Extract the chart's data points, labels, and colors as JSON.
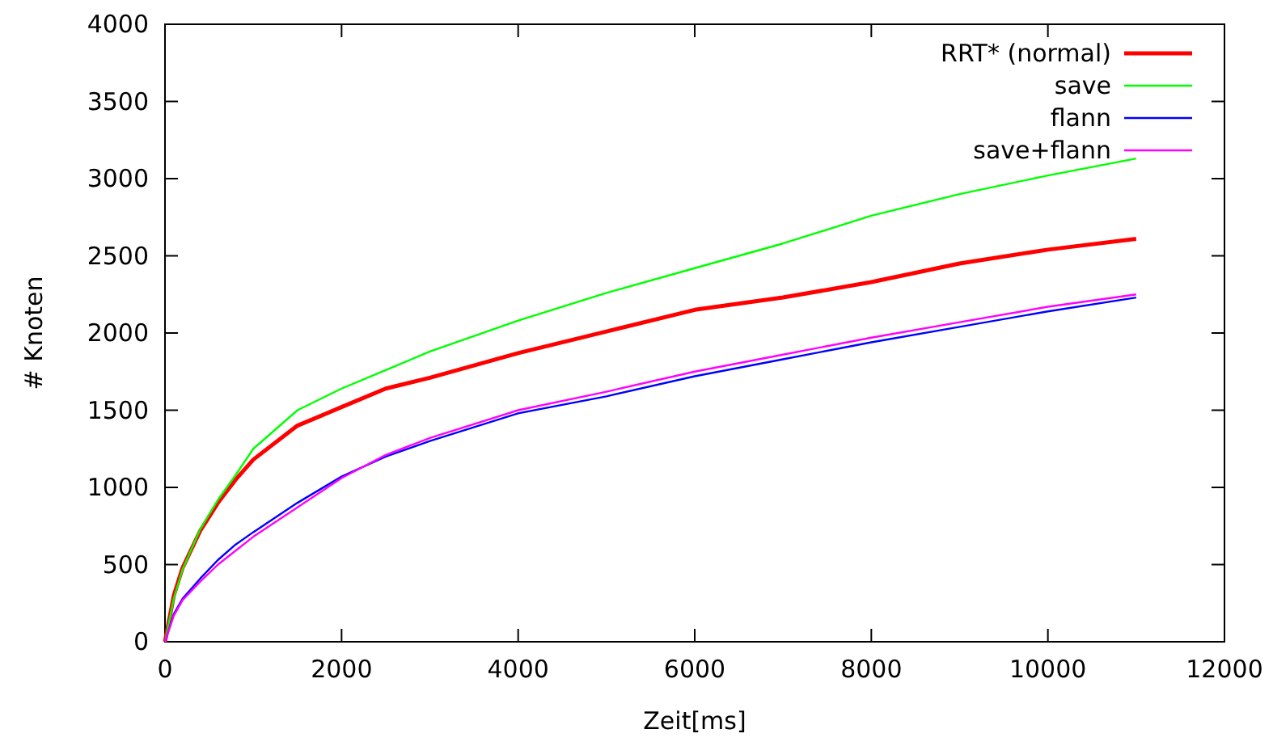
{
  "chart_data": {
    "type": "line",
    "xlabel": "Zeit[ms]",
    "ylabel": "# Knoten",
    "x": [
      0,
      100,
      200,
      400,
      600,
      800,
      1000,
      1500,
      2000,
      2500,
      3000,
      4000,
      5000,
      6000,
      7000,
      8000,
      9000,
      10000,
      11000
    ],
    "series": [
      {
        "name": "RRT* (normal)",
        "color": "#ff0000",
        "values": [
          0,
          300,
          480,
          720,
          900,
          1050,
          1180,
          1400,
          1520,
          1640,
          1710,
          1870,
          2010,
          2150,
          2230,
          2330,
          2450,
          2540,
          2610
        ]
      },
      {
        "name": "save",
        "color": "#00ff00",
        "values": [
          0,
          280,
          470,
          730,
          920,
          1080,
          1250,
          1500,
          1640,
          1760,
          1880,
          2080,
          2260,
          2420,
          2580,
          2760,
          2900,
          3020,
          3130
        ]
      },
      {
        "name": "flann",
        "color": "#0000ff",
        "values": [
          0,
          180,
          280,
          410,
          530,
          630,
          710,
          900,
          1070,
          1200,
          1300,
          1480,
          1590,
          1720,
          1830,
          1940,
          2040,
          2140,
          2230
        ]
      },
      {
        "name": "save+flann",
        "color": "#ff00ff",
        "values": [
          0,
          170,
          270,
          390,
          500,
          590,
          680,
          870,
          1060,
          1210,
          1320,
          1500,
          1620,
          1750,
          1860,
          1970,
          2070,
          2170,
          2250
        ]
      }
    ],
    "xlim": [
      0,
      12000
    ],
    "xticks": [
      0,
      2000,
      4000,
      6000,
      8000,
      10000,
      12000
    ],
    "ylim": [
      0,
      4000
    ],
    "yticks": [
      0,
      500,
      1000,
      1500,
      2000,
      2500,
      3000,
      3500,
      4000
    ],
    "grid": false,
    "legend": "top right",
    "line_style": "solid"
  }
}
